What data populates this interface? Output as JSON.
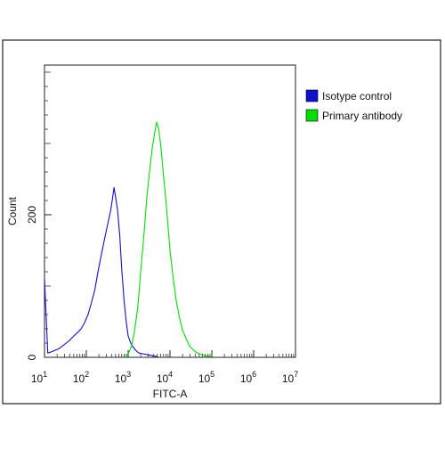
{
  "chart_data": {
    "type": "line",
    "title": "",
    "xlabel": "FITC-A",
    "ylabel": "Count",
    "x_scale": "log",
    "xlim": [
      10,
      10000000
    ],
    "ylim": [
      0,
      410
    ],
    "grid": false,
    "legend_placement": "top-right",
    "x_ticks": [
      {
        "value": 10,
        "base": "10",
        "exp": "1"
      },
      {
        "value": 100,
        "base": "10",
        "exp": "2"
      },
      {
        "value": 1000,
        "base": "10",
        "exp": "3"
      },
      {
        "value": 10000,
        "base": "10",
        "exp": "4"
      },
      {
        "value": 100000,
        "base": "10",
        "exp": "5"
      },
      {
        "value": 1000000,
        "base": "10",
        "exp": "6"
      },
      {
        "value": 10000000,
        "base": "10",
        "exp": "7"
      }
    ],
    "y_ticks": [
      {
        "value": 0,
        "label": "0"
      },
      {
        "value": 200,
        "label": "200"
      }
    ],
    "series": [
      {
        "name": "Isotype control",
        "color": "#1010cc",
        "x": [
          10,
          12,
          15,
          18,
          22,
          27,
          33,
          40,
          50,
          60,
          75,
          90,
          110,
          130,
          160,
          190,
          230,
          270,
          320,
          380,
          420,
          460,
          500,
          560,
          630,
          700,
          800,
          900,
          1000,
          1150,
          1300,
          1500,
          1800,
          2200,
          2700,
          3300,
          4000,
          5000
        ],
        "y": [
          110,
          6,
          8,
          10,
          12,
          16,
          20,
          24,
          30,
          34,
          40,
          48,
          60,
          75,
          95,
          120,
          145,
          165,
          185,
          205,
          222,
          238,
          225,
          205,
          170,
          125,
          80,
          50,
          30,
          20,
          15,
          10,
          6,
          5,
          4,
          3,
          2,
          1
        ]
      },
      {
        "name": "Primary antibody",
        "color": "#00dd00",
        "x": [
          900,
          1000,
          1200,
          1400,
          1700,
          2000,
          2400,
          2800,
          3300,
          3800,
          4300,
          4800,
          5300,
          5800,
          6300,
          7000,
          8000,
          9000,
          10000,
          12000,
          14000,
          17000,
          20000,
          25000,
          30000,
          40000,
          50000,
          70000,
          100000
        ],
        "y": [
          2,
          5,
          15,
          35,
          70,
          120,
          175,
          225,
          265,
          295,
          315,
          330,
          322,
          305,
          285,
          255,
          220,
          185,
          150,
          110,
          80,
          55,
          38,
          25,
          15,
          8,
          5,
          2,
          1
        ]
      }
    ]
  }
}
